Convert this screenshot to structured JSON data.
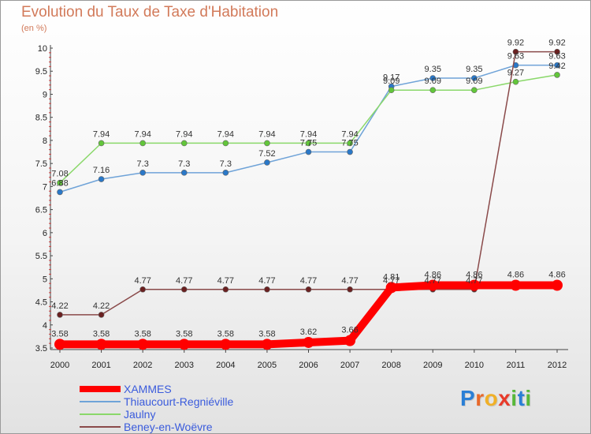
{
  "title": "Evolution du Taux de Taxe d'Habitation",
  "unit_label": "(en %)",
  "brand": {
    "letters": [
      {
        "char": "P",
        "color": "#2a7fd6"
      },
      {
        "char": "r",
        "color": "#e8692a"
      },
      {
        "char": "o",
        "color": "#f0b028"
      },
      {
        "char": "x",
        "color": "#e83a2a"
      },
      {
        "char": "i",
        "color": "#58b83a"
      },
      {
        "char": "t",
        "color": "#2a7fd6"
      },
      {
        "char": "i",
        "color": "#58b83a"
      }
    ]
  },
  "chart_data": {
    "type": "line",
    "title": "Evolution du Taux de Taxe d'Habitation",
    "ylabel": "(en %)",
    "xlabel": "",
    "x": [
      "2000",
      "2001",
      "2002",
      "2003",
      "2004",
      "2005",
      "2006",
      "2007",
      "2008",
      "2009",
      "2010",
      "2011",
      "2012"
    ],
    "ylim": [
      3.5,
      10
    ],
    "yticks": [
      "3.5",
      "4",
      "4.5",
      "5",
      "5.5",
      "6",
      "6.5",
      "7",
      "7.5",
      "8",
      "8.5",
      "9",
      "9.5",
      "10"
    ],
    "grid": false,
    "legend_position": "bottom-left",
    "series": [
      {
        "name": "XAMMES",
        "color": "#ff0000",
        "values": [
          3.58,
          3.58,
          3.58,
          3.58,
          3.58,
          3.58,
          3.62,
          3.66,
          4.81,
          4.86,
          4.86,
          4.86,
          4.86
        ],
        "labels": [
          "3.58",
          "3.58",
          "3.58",
          "3.58",
          "3.58",
          "3.58",
          "3.62",
          "3.66",
          "4.81",
          "4.86",
          "4.86",
          "4.86",
          "4.86"
        ]
      },
      {
        "name": "Thiaucourt-Regniéville",
        "color": "#6fa3d8",
        "marker_color": "#2a78c8",
        "values": [
          6.88,
          7.16,
          7.3,
          7.3,
          7.3,
          7.52,
          7.75,
          7.75,
          9.17,
          9.35,
          9.35,
          9.63,
          9.63
        ],
        "labels": [
          "6.88",
          "7.16",
          "7.3",
          "7.3",
          "7.3",
          "7.52",
          "7.75",
          "7.75",
          "9.17",
          "9.35",
          "9.35",
          "9.63",
          "9.63"
        ]
      },
      {
        "name": "Jaulny",
        "color": "#8ad86a",
        "marker_color": "#62c63a",
        "values": [
          7.08,
          7.94,
          7.94,
          7.94,
          7.94,
          7.94,
          7.94,
          7.94,
          9.09,
          9.09,
          9.09,
          9.27,
          9.42
        ],
        "labels": [
          "7.08",
          "7.94",
          "7.94",
          "7.94",
          "7.94",
          "7.94",
          "7.94",
          "7.94",
          "9.09",
          "9.09",
          "9.09",
          "9.27",
          "9.42"
        ]
      },
      {
        "name": "Beney-en-Woëvre",
        "color": "#8a4a4a",
        "marker_color": "#6a2020",
        "values": [
          4.22,
          4.22,
          4.77,
          4.77,
          4.77,
          4.77,
          4.77,
          4.77,
          4.77,
          4.77,
          4.77,
          9.92,
          9.92
        ],
        "labels": [
          "4.22",
          "4.22",
          "4.77",
          "4.77",
          "4.77",
          "4.77",
          "4.77",
          "4.77",
          "4.77",
          "4.77",
          "4.77",
          "9.92",
          "9.92"
        ]
      }
    ]
  }
}
